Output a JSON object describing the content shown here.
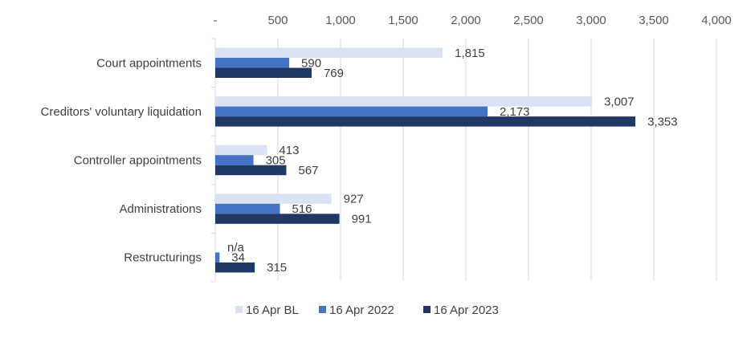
{
  "chart_data": {
    "type": "bar",
    "orientation": "horizontal",
    "categories": [
      "Court appointments",
      "Creditors' voluntary liquidation",
      "Controller appointments",
      "Administrations",
      "Restructurings"
    ],
    "series": [
      {
        "name": "16 Apr BL",
        "color": "#dae3f3",
        "values": [
          1815,
          3007,
          413,
          927,
          null
        ],
        "labels": [
          "1,815",
          "3,007",
          "413",
          "927",
          "n/a"
        ]
      },
      {
        "name": "16 Apr 2022",
        "color": "#4472c4",
        "values": [
          590,
          2173,
          305,
          516,
          34
        ],
        "labels": [
          "590",
          "2,173",
          "305",
          "516",
          "34"
        ]
      },
      {
        "name": "16 Apr 2023",
        "color": "#203864",
        "values": [
          769,
          3353,
          567,
          991,
          315
        ],
        "labels": [
          "769",
          "3,353",
          "567",
          "991",
          "315"
        ]
      }
    ],
    "xlim": [
      0,
      4000
    ],
    "ticks": [
      {
        "value": 0,
        "label": "-"
      },
      {
        "value": 500,
        "label": "500"
      },
      {
        "value": 1000,
        "label": "1,000"
      },
      {
        "value": 1500,
        "label": "1,500"
      },
      {
        "value": 2000,
        "label": "2,000"
      },
      {
        "value": 2500,
        "label": "2,500"
      },
      {
        "value": 3000,
        "label": "3,000"
      },
      {
        "value": 3500,
        "label": "3,500"
      },
      {
        "value": 4000,
        "label": "4,000"
      }
    ],
    "x_axis_position": "top",
    "grid": true,
    "legend": "bottom"
  }
}
